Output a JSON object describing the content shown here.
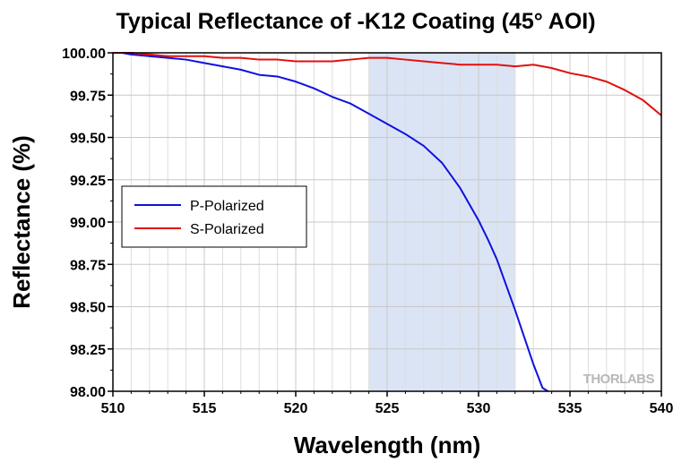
{
  "chart_data": {
    "type": "line",
    "title": "Typical Reflectance of -K12 Coating (45° AOI)",
    "xlabel": "Wavelength (nm)",
    "ylabel": "Reflectance (%)",
    "xlim": [
      510,
      540
    ],
    "ylim": [
      98.0,
      100.0
    ],
    "x_ticks": [
      510,
      515,
      520,
      525,
      530,
      535,
      540
    ],
    "y_ticks": [
      "98.00",
      "98.25",
      "98.50",
      "98.75",
      "99.00",
      "99.25",
      "99.50",
      "99.75",
      "100.00"
    ],
    "grid": true,
    "legend_position": "middle-left",
    "highlight_band": {
      "x_start": 524,
      "x_end": 532,
      "color": "#dbe4f5"
    },
    "watermark": "THORLABS",
    "series": [
      {
        "name": "P-Polarized",
        "color": "#1010e0",
        "x": [
          510,
          510.5,
          511,
          512,
          513,
          514,
          515,
          516,
          517,
          518,
          519,
          520,
          521,
          522,
          523,
          524,
          525,
          526,
          527,
          528,
          529,
          530,
          530.5,
          531,
          531.5,
          532,
          532.5,
          533,
          533.5,
          533.8
        ],
        "y": [
          100.0,
          100.0,
          99.99,
          99.98,
          99.97,
          99.96,
          99.94,
          99.92,
          99.9,
          99.87,
          99.86,
          99.83,
          99.79,
          99.74,
          99.7,
          99.64,
          99.58,
          99.52,
          99.45,
          99.35,
          99.2,
          99.01,
          98.9,
          98.78,
          98.63,
          98.48,
          98.32,
          98.16,
          98.02,
          98.0
        ]
      },
      {
        "name": "S-Polarized",
        "color": "#e01010",
        "x": [
          510,
          511,
          512,
          513,
          514,
          515,
          516,
          517,
          518,
          519,
          520,
          521,
          522,
          523,
          524,
          525,
          526,
          527,
          528,
          529,
          530,
          531,
          532,
          533,
          534,
          535,
          536,
          537,
          538,
          539,
          540
        ],
        "y": [
          100.0,
          100.0,
          99.99,
          99.98,
          99.98,
          99.98,
          99.97,
          99.97,
          99.96,
          99.96,
          99.95,
          99.95,
          99.95,
          99.96,
          99.97,
          99.97,
          99.96,
          99.95,
          99.94,
          99.93,
          99.93,
          99.93,
          99.92,
          99.93,
          99.91,
          99.88,
          99.86,
          99.83,
          99.78,
          99.72,
          99.63
        ]
      }
    ]
  }
}
